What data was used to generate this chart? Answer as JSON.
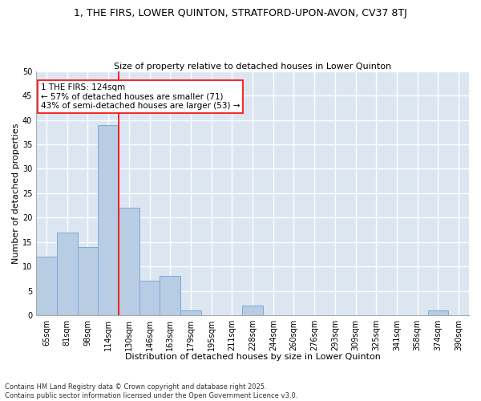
{
  "title": "1, THE FIRS, LOWER QUINTON, STRATFORD-UPON-AVON, CV37 8TJ",
  "subtitle": "Size of property relative to detached houses in Lower Quinton",
  "xlabel": "Distribution of detached houses by size in Lower Quinton",
  "ylabel": "Number of detached properties",
  "categories": [
    "65sqm",
    "81sqm",
    "98sqm",
    "114sqm",
    "130sqm",
    "146sqm",
    "163sqm",
    "179sqm",
    "195sqm",
    "211sqm",
    "228sqm",
    "244sqm",
    "260sqm",
    "276sqm",
    "293sqm",
    "309sqm",
    "325sqm",
    "341sqm",
    "358sqm",
    "374sqm",
    "390sqm"
  ],
  "values": [
    12,
    17,
    14,
    39,
    22,
    7,
    8,
    1,
    0,
    0,
    2,
    0,
    0,
    0,
    0,
    0,
    0,
    0,
    0,
    1,
    0
  ],
  "bar_color": "#b8cce4",
  "bar_edge_color": "#7aaadb",
  "vline_x": 4.0,
  "vline_color": "red",
  "annotation_text": "1 THE FIRS: 124sqm\n← 57% of detached houses are smaller (71)\n43% of semi-detached houses are larger (53) →",
  "annotation_box_color": "white",
  "annotation_box_edge_color": "red",
  "ylim": [
    0,
    50
  ],
  "yticks": [
    0,
    5,
    10,
    15,
    20,
    25,
    30,
    35,
    40,
    45,
    50
  ],
  "bg_color": "#dce6f1",
  "grid_color": "white",
  "footnote": "Contains HM Land Registry data © Crown copyright and database right 2025.\nContains public sector information licensed under the Open Government Licence v3.0.",
  "title_fontsize": 9,
  "subtitle_fontsize": 8,
  "xlabel_fontsize": 8,
  "ylabel_fontsize": 8,
  "tick_fontsize": 7,
  "annot_fontsize": 7.5,
  "footnote_fontsize": 6
}
